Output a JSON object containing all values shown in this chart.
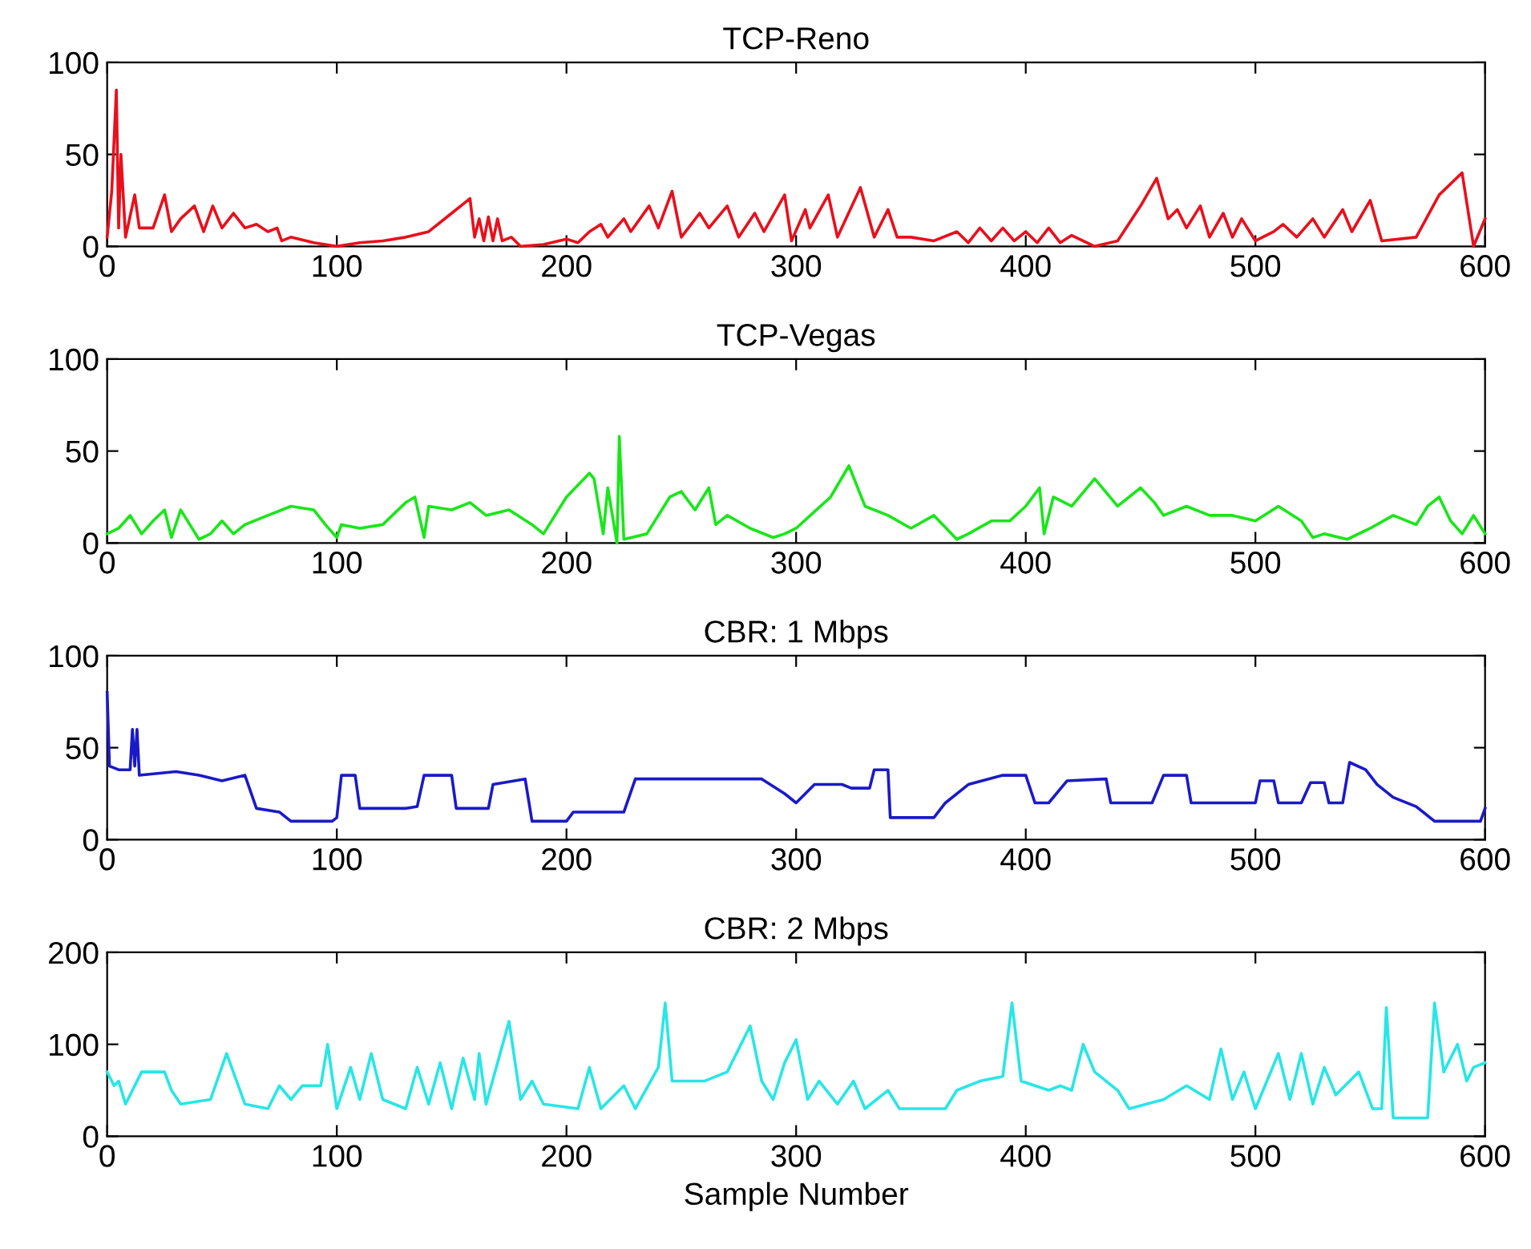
{
  "chart_data": [
    {
      "type": "line",
      "title": "TCP-Reno",
      "xlim": [
        0,
        600
      ],
      "xticks": [
        0,
        100,
        200,
        300,
        400,
        500,
        600
      ],
      "ylim": [
        0,
        100
      ],
      "yticks": [
        0,
        50,
        100
      ],
      "series": [
        {
          "color": "#e8101c",
          "x": [
            0,
            2,
            4,
            5,
            6,
            8,
            12,
            14,
            20,
            25,
            28,
            32,
            38,
            42,
            46,
            50,
            55,
            60,
            65,
            70,
            74,
            76,
            80,
            90,
            100,
            110,
            120,
            130,
            140,
            150,
            158,
            160,
            162,
            164,
            166,
            168,
            170,
            172,
            176,
            180,
            190,
            200,
            205,
            210,
            215,
            218,
            225,
            228,
            236,
            240,
            246,
            250,
            258,
            262,
            270,
            275,
            282,
            286,
            295,
            298,
            304,
            306,
            314,
            318,
            328,
            334,
            340,
            344,
            350,
            360,
            370,
            375,
            380,
            385,
            390,
            395,
            400,
            405,
            410,
            415,
            420,
            430,
            440,
            450,
            457,
            462,
            466,
            470,
            476,
            480,
            486,
            490,
            494,
            500,
            508,
            512,
            518,
            525,
            530,
            538,
            542,
            550,
            555,
            570,
            580,
            590,
            595,
            600
          ],
          "values": [
            5,
            30,
            85,
            10,
            50,
            5,
            28,
            10,
            10,
            28,
            8,
            15,
            22,
            8,
            22,
            10,
            18,
            10,
            12,
            8,
            10,
            3,
            5,
            2,
            0,
            2,
            3,
            5,
            8,
            18,
            26,
            5,
            15,
            3,
            16,
            3,
            15,
            3,
            5,
            0,
            1,
            4,
            2,
            8,
            12,
            5,
            15,
            8,
            22,
            10,
            30,
            5,
            18,
            10,
            22,
            5,
            18,
            8,
            28,
            3,
            20,
            10,
            28,
            5,
            32,
            5,
            20,
            5,
            5,
            3,
            8,
            2,
            10,
            3,
            10,
            3,
            8,
            2,
            10,
            2,
            6,
            0,
            3,
            22,
            37,
            15,
            20,
            10,
            22,
            5,
            18,
            5,
            15,
            3,
            8,
            12,
            5,
            15,
            5,
            20,
            8,
            25,
            3,
            5,
            28,
            40,
            0,
            15
          ]
        }
      ]
    },
    {
      "type": "line",
      "title": "TCP-Vegas",
      "xlim": [
        0,
        600
      ],
      "xticks": [
        0,
        100,
        200,
        300,
        400,
        500,
        600
      ],
      "ylim": [
        0,
        100
      ],
      "yticks": [
        0,
        50,
        100
      ],
      "series": [
        {
          "color": "#19e619",
          "x": [
            0,
            5,
            10,
            15,
            20,
            25,
            28,
            32,
            36,
            40,
            45,
            50,
            55,
            60,
            70,
            80,
            90,
            95,
            100,
            102,
            110,
            120,
            130,
            134,
            138,
            140,
            150,
            158,
            165,
            175,
            185,
            190,
            200,
            210,
            212,
            216,
            218,
            222,
            223,
            225,
            235,
            245,
            250,
            256,
            262,
            265,
            270,
            280,
            290,
            295,
            300,
            315,
            323,
            330,
            340,
            350,
            360,
            370,
            375,
            385,
            393,
            400,
            406,
            408,
            412,
            420,
            430,
            440,
            450,
            456,
            460,
            470,
            480,
            490,
            500,
            510,
            520,
            525,
            530,
            540,
            550,
            560,
            570,
            575,
            580,
            585,
            590,
            595,
            600
          ],
          "values": [
            5,
            8,
            15,
            5,
            12,
            18,
            3,
            18,
            10,
            2,
            5,
            12,
            5,
            10,
            15,
            20,
            18,
            10,
            3,
            10,
            8,
            10,
            22,
            25,
            3,
            20,
            18,
            22,
            15,
            18,
            10,
            5,
            25,
            38,
            35,
            5,
            30,
            0,
            58,
            2,
            5,
            25,
            28,
            18,
            30,
            10,
            15,
            8,
            3,
            5,
            8,
            25,
            42,
            20,
            15,
            8,
            15,
            2,
            5,
            12,
            12,
            20,
            30,
            5,
            25,
            20,
            35,
            20,
            30,
            22,
            15,
            20,
            15,
            15,
            12,
            20,
            12,
            3,
            5,
            2,
            8,
            15,
            10,
            20,
            25,
            12,
            5,
            15,
            5
          ]
        }
      ]
    },
    {
      "type": "line",
      "title": "CBR: 1 Mbps",
      "xlim": [
        0,
        600
      ],
      "xticks": [
        0,
        100,
        200,
        300,
        400,
        500,
        600
      ],
      "ylim": [
        0,
        100
      ],
      "yticks": [
        0,
        50,
        100
      ],
      "series": [
        {
          "color": "#1a1ac8",
          "x": [
            0,
            1,
            5,
            10,
            11,
            12,
            13,
            14,
            30,
            40,
            50,
            60,
            65,
            75,
            80,
            98,
            100,
            102,
            108,
            110,
            130,
            135,
            138,
            150,
            152,
            166,
            168,
            182,
            185,
            200,
            203,
            225,
            230,
            260,
            285,
            295,
            300,
            308,
            320,
            324,
            332,
            334,
            340,
            341,
            360,
            365,
            375,
            390,
            400,
            404,
            410,
            418,
            435,
            437,
            455,
            460,
            470,
            472,
            500,
            502,
            508,
            510,
            520,
            524,
            530,
            532,
            538,
            541,
            548,
            553,
            560,
            570,
            578,
            590,
            598,
            600
          ],
          "values": [
            80,
            40,
            38,
            38,
            60,
            40,
            60,
            35,
            37,
            35,
            32,
            35,
            17,
            15,
            10,
            10,
            12,
            35,
            35,
            17,
            17,
            18,
            35,
            35,
            17,
            17,
            30,
            33,
            10,
            10,
            15,
            15,
            33,
            33,
            33,
            25,
            20,
            30,
            30,
            28,
            28,
            38,
            38,
            12,
            12,
            20,
            30,
            35,
            35,
            20,
            20,
            32,
            33,
            20,
            20,
            35,
            35,
            20,
            20,
            32,
            32,
            20,
            20,
            31,
            31,
            20,
            20,
            42,
            38,
            30,
            23,
            18,
            10,
            10,
            10,
            17
          ]
        }
      ]
    },
    {
      "type": "line",
      "title": "CBR: 2 Mbps",
      "xlabel": "Sample Number",
      "xlim": [
        0,
        600
      ],
      "xticks": [
        0,
        100,
        200,
        300,
        400,
        500,
        600
      ],
      "ylim": [
        0,
        200
      ],
      "yticks": [
        0,
        100,
        200
      ],
      "series": [
        {
          "color": "#28e6e6",
          "x": [
            0,
            3,
            5,
            8,
            15,
            25,
            28,
            32,
            45,
            52,
            60,
            70,
            75,
            80,
            85,
            93,
            96,
            100,
            106,
            110,
            115,
            120,
            130,
            135,
            140,
            145,
            150,
            155,
            160,
            162,
            165,
            175,
            180,
            185,
            190,
            205,
            210,
            215,
            225,
            230,
            240,
            243,
            246,
            260,
            270,
            280,
            285,
            290,
            295,
            300,
            305,
            310,
            318,
            325,
            330,
            340,
            345,
            365,
            370,
            380,
            390,
            394,
            398,
            410,
            415,
            420,
            425,
            430,
            440,
            445,
            460,
            470,
            480,
            485,
            490,
            495,
            500,
            510,
            515,
            520,
            525,
            530,
            535,
            545,
            551,
            555,
            557,
            560,
            575,
            578,
            582,
            588,
            592,
            595,
            600
          ],
          "values": [
            70,
            55,
            60,
            35,
            70,
            70,
            50,
            35,
            40,
            90,
            35,
            30,
            55,
            40,
            55,
            55,
            100,
            30,
            75,
            40,
            90,
            40,
            30,
            75,
            35,
            80,
            30,
            85,
            40,
            90,
            35,
            125,
            40,
            60,
            35,
            30,
            75,
            30,
            55,
            30,
            75,
            145,
            60,
            60,
            70,
            120,
            60,
            40,
            80,
            105,
            40,
            60,
            35,
            60,
            30,
            50,
            30,
            30,
            50,
            60,
            65,
            145,
            60,
            50,
            55,
            50,
            100,
            70,
            50,
            30,
            40,
            55,
            40,
            95,
            40,
            70,
            30,
            90,
            40,
            90,
            35,
            75,
            45,
            70,
            30,
            30,
            140,
            20,
            20,
            145,
            70,
            100,
            60,
            75,
            80
          ]
        }
      ]
    }
  ]
}
